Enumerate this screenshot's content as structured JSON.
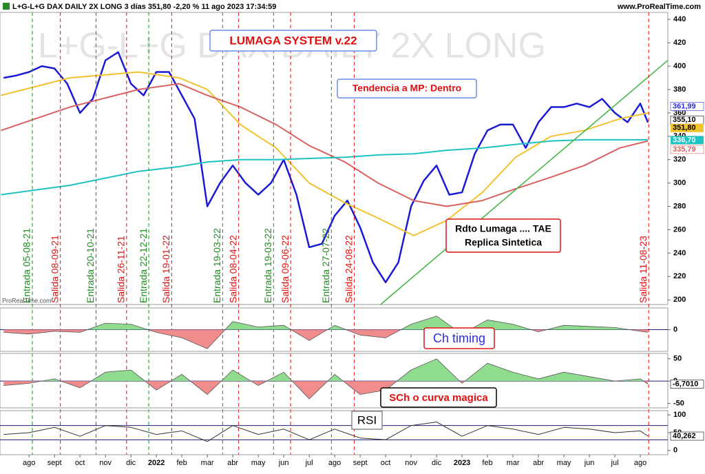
{
  "header": {
    "title": "L+G-L+G DAX DAILY 2X LONG 3 días 351,80 -2,20 % 11 ago 2023 17:34:59",
    "site": "www.ProRealTime.com"
  },
  "watermark": "L+G-L+G DAX DAILY 2X LONG",
  "credit": "ProRealTime.com",
  "annotations": [
    "LUMAGA SYSTEM v.22",
    "Tendencia a MP: Dentro",
    "Rdto Lumaga .... TAE",
    "Replica Sintetica",
    "Ch timing",
    "SCh o curva magica",
    "RSI"
  ],
  "chart_data": [
    {
      "type": "line",
      "xlim": [
        -1.14,
        25.08
      ],
      "ylim": [
        196,
        446
      ],
      "yticks": [
        200,
        220,
        240,
        260,
        280,
        300,
        320,
        340,
        360,
        380,
        400,
        420,
        440
      ],
      "grid": false,
      "series": [
        {
          "color": "#1a1ad6",
          "width": 2.5,
          "x": [
            -1,
            -0.5,
            0,
            0.5,
            1,
            1.5,
            2,
            2.5,
            3,
            3.5,
            4,
            4.5,
            5,
            5.5,
            6,
            6.5,
            7,
            7.5,
            8,
            8.5,
            9,
            9.5,
            10,
            10.5,
            11,
            11.5,
            12,
            12.5,
            13,
            13.5,
            14,
            14.5,
            15,
            15.5,
            16,
            16.5,
            17,
            17.5,
            18,
            18.5,
            19,
            19.5,
            20,
            20.5,
            21,
            21.5,
            22,
            22.5,
            23,
            23.5,
            24,
            24.3
          ],
          "values": [
            390,
            392,
            395,
            400,
            398,
            385,
            360,
            372,
            405,
            412,
            385,
            375,
            395,
            395,
            375,
            355,
            280,
            300,
            315,
            300,
            290,
            300,
            320,
            290,
            245,
            248,
            272,
            285,
            262,
            232,
            215,
            232,
            280,
            302,
            315,
            290,
            292,
            325,
            345,
            350,
            350,
            330,
            352,
            365,
            365,
            368,
            365,
            372,
            360,
            352,
            368,
            351.8
          ]
        },
        {
          "color": "#f2c12e",
          "width": 2,
          "x": [
            -1.1,
            1.6,
            4.3,
            5.9,
            7,
            8.3,
            9.7,
            11,
            12.4,
            13.7,
            15.1,
            16.4,
            17.8,
            19.1,
            20.5,
            21.8,
            23.2,
            24.3
          ],
          "values": [
            375,
            390,
            395,
            390,
            380,
            350,
            330,
            300,
            283,
            270,
            255,
            268,
            292,
            322,
            340,
            345,
            355,
            360
          ]
        },
        {
          "color": "#d9605e",
          "width": 2,
          "x": [
            -1.1,
            1.6,
            4.3,
            5.9,
            7,
            8.3,
            9.7,
            11,
            12.4,
            13.7,
            15.1,
            16.4,
            17.8,
            19.1,
            20.5,
            21.8,
            23.2,
            24.3
          ],
          "values": [
            345,
            365,
            380,
            385,
            375,
            365,
            350,
            332,
            318,
            300,
            285,
            280,
            285,
            295,
            305,
            315,
            330,
            336
          ]
        },
        {
          "color": "#1fc2c2",
          "width": 2,
          "x": [
            -1.1,
            1.6,
            4.3,
            5.9,
            7,
            8.3,
            9.7,
            11,
            12.4,
            13.7,
            15.1,
            16.4,
            17.8,
            19.1,
            20.5,
            21.8,
            23.2,
            24.3
          ],
          "values": [
            290,
            298,
            310,
            314,
            318,
            320,
            320,
            321,
            322,
            324,
            325,
            328,
            330,
            333,
            336,
            337,
            337,
            337
          ]
        }
      ],
      "trendlines": [
        {
          "x": [
            13.8,
            25.08
          ],
          "y": [
            196,
            405
          ],
          "color": "#3cb63c"
        }
      ],
      "markers": [
        {
          "value": 361.99,
          "label": "361,99",
          "color": "#2b2bd9",
          "bg": "#ffffff"
        },
        {
          "value": 355.1,
          "label": "355,10",
          "color": "#000000",
          "bg": "#ffffff"
        },
        {
          "value": 351.8,
          "label": "351,80",
          "color": "#000000",
          "bg": "#f2c12e"
        },
        {
          "value": 336.7,
          "label": "336,70",
          "color": "#ffffff",
          "bg": "#1fc2c2"
        },
        {
          "value": 335.79,
          "label": "335,79",
          "color": "#d9605e",
          "bg": "#ffffff"
        }
      ],
      "signals": [
        {
          "label": "Entrada 05-08-21",
          "x": 0.13,
          "color": "#1e8c1e"
        },
        {
          "label": "Salida 08-09-21",
          "x": 1.23,
          "color": "#e01010"
        },
        {
          "label": "Entrada 20-10-21",
          "x": 2.63,
          "color": "#1e8c1e"
        },
        {
          "label": "Salida 26-11-21",
          "x": 3.83,
          "color": "#e01010"
        },
        {
          "label": "Entrada 22-12-21",
          "x": 4.7,
          "color": "#1e8c1e"
        },
        {
          "label": "Salida 19-01-22",
          "x": 5.6,
          "color": "#e01010"
        },
        {
          "label": "Entrada 19-03-22",
          "x": 7.6,
          "color": "#1e8c1e"
        },
        {
          "label": "Salida 08-04-22",
          "x": 8.23,
          "color": "#e01010"
        },
        {
          "label": "Entrada 19-03-22",
          "x": 9.6,
          "color": "#1e8c1e"
        },
        {
          "label": "Salida 09-06-22",
          "x": 10.27,
          "color": "#e01010"
        },
        {
          "label": "Entrada 27-07-22",
          "x": 11.87,
          "color": "#1e8c1e"
        },
        {
          "label": "Salida 24-08-22",
          "x": 12.77,
          "color": "#e01010"
        },
        {
          "label": "Salida 11-08-23",
          "x": 24.33,
          "color": "#e01010"
        }
      ]
    },
    {
      "type": "area",
      "xlim": [
        -1.14,
        25.08
      ],
      "ylim": [
        -40,
        40
      ],
      "yticks": [
        0
      ],
      "hlines": [
        0
      ],
      "pos_color": "#8fdc8f",
      "neg_color": "#f08c8c",
      "x": [
        -1,
        0,
        1,
        2,
        3,
        4,
        5,
        6,
        7,
        8,
        9,
        10,
        11,
        12,
        13,
        14,
        15,
        16,
        17,
        18,
        19,
        20,
        21,
        22,
        23,
        24,
        24.3
      ],
      "values": [
        -5,
        -8,
        -3,
        -5,
        12,
        10,
        -5,
        -15,
        -35,
        15,
        5,
        8,
        -20,
        8,
        -10,
        -15,
        10,
        25,
        -8,
        18,
        10,
        -4,
        8,
        6,
        4,
        -3,
        -5
      ]
    },
    {
      "type": "area",
      "xlim": [
        -1.14,
        25.08
      ],
      "ylim": [
        -60,
        62
      ],
      "yticks": [
        -50,
        0,
        50
      ],
      "hlines": [
        0
      ],
      "pos_color": "#8fdc8f",
      "neg_color": "#f08c8c",
      "x": [
        -1,
        0,
        1,
        2,
        3,
        4,
        5,
        6,
        7,
        8,
        9,
        10,
        11,
        12,
        13,
        14,
        15,
        16,
        17,
        18,
        19,
        20,
        21,
        22,
        23,
        24,
        24.3
      ],
      "values": [
        -10,
        -5,
        5,
        -15,
        20,
        25,
        -20,
        15,
        -30,
        25,
        -10,
        20,
        -40,
        15,
        -30,
        -20,
        25,
        50,
        -5,
        40,
        20,
        5,
        20,
        10,
        0,
        5,
        -6.701
      ],
      "markers": [
        {
          "value": -6.701,
          "label": "-6,7010",
          "color": "#000000",
          "bg": "#ffffff"
        }
      ]
    },
    {
      "type": "line",
      "xlim": [
        -1.14,
        25.08
      ],
      "ylim": [
        -12,
        112
      ],
      "yticks": [
        0,
        50,
        100
      ],
      "hlines": [
        30,
        70
      ],
      "series": [
        {
          "color": "#333333",
          "width": 1,
          "x": [
            -1,
            0,
            1,
            2,
            3,
            4,
            5,
            6,
            7,
            8,
            9,
            10,
            11,
            12,
            13,
            14,
            15,
            16,
            17,
            18,
            19,
            20,
            21,
            22,
            23,
            24,
            24.3
          ],
          "values": [
            45,
            50,
            65,
            40,
            70,
            65,
            45,
            55,
            25,
            70,
            45,
            60,
            30,
            60,
            35,
            30,
            70,
            80,
            40,
            70,
            60,
            45,
            65,
            60,
            50,
            55,
            40.262
          ]
        }
      ],
      "markers": [
        {
          "value": 40.262,
          "label": "40,262",
          "color": "#000000",
          "bg": "#ffffff"
        }
      ],
      "xticks": [
        {
          "value": 0,
          "label": "ago"
        },
        {
          "value": 1,
          "label": "sept"
        },
        {
          "value": 2,
          "label": "oct"
        },
        {
          "value": 3,
          "label": "nov"
        },
        {
          "value": 4,
          "label": "dic"
        },
        {
          "value": 5,
          "label": "2022"
        },
        {
          "value": 6,
          "label": "feb"
        },
        {
          "value": 7,
          "label": "mar"
        },
        {
          "value": 8,
          "label": "abr"
        },
        {
          "value": 9,
          "label": "may"
        },
        {
          "value": 10,
          "label": "jun"
        },
        {
          "value": 11,
          "label": "jul"
        },
        {
          "value": 12,
          "label": "ago"
        },
        {
          "value": 13,
          "label": "sept"
        },
        {
          "value": 14,
          "label": "oct"
        },
        {
          "value": 15,
          "label": "nov"
        },
        {
          "value": 16,
          "label": "dic"
        },
        {
          "value": 17,
          "label": "2023"
        },
        {
          "value": 18,
          "label": "feb"
        },
        {
          "value": 19,
          "label": "mar"
        },
        {
          "value": 20,
          "label": "abr"
        },
        {
          "value": 21,
          "label": "may"
        },
        {
          "value": 22,
          "label": "jun"
        },
        {
          "value": 23,
          "label": "jul"
        },
        {
          "value": 24,
          "label": "ago"
        }
      ]
    }
  ]
}
